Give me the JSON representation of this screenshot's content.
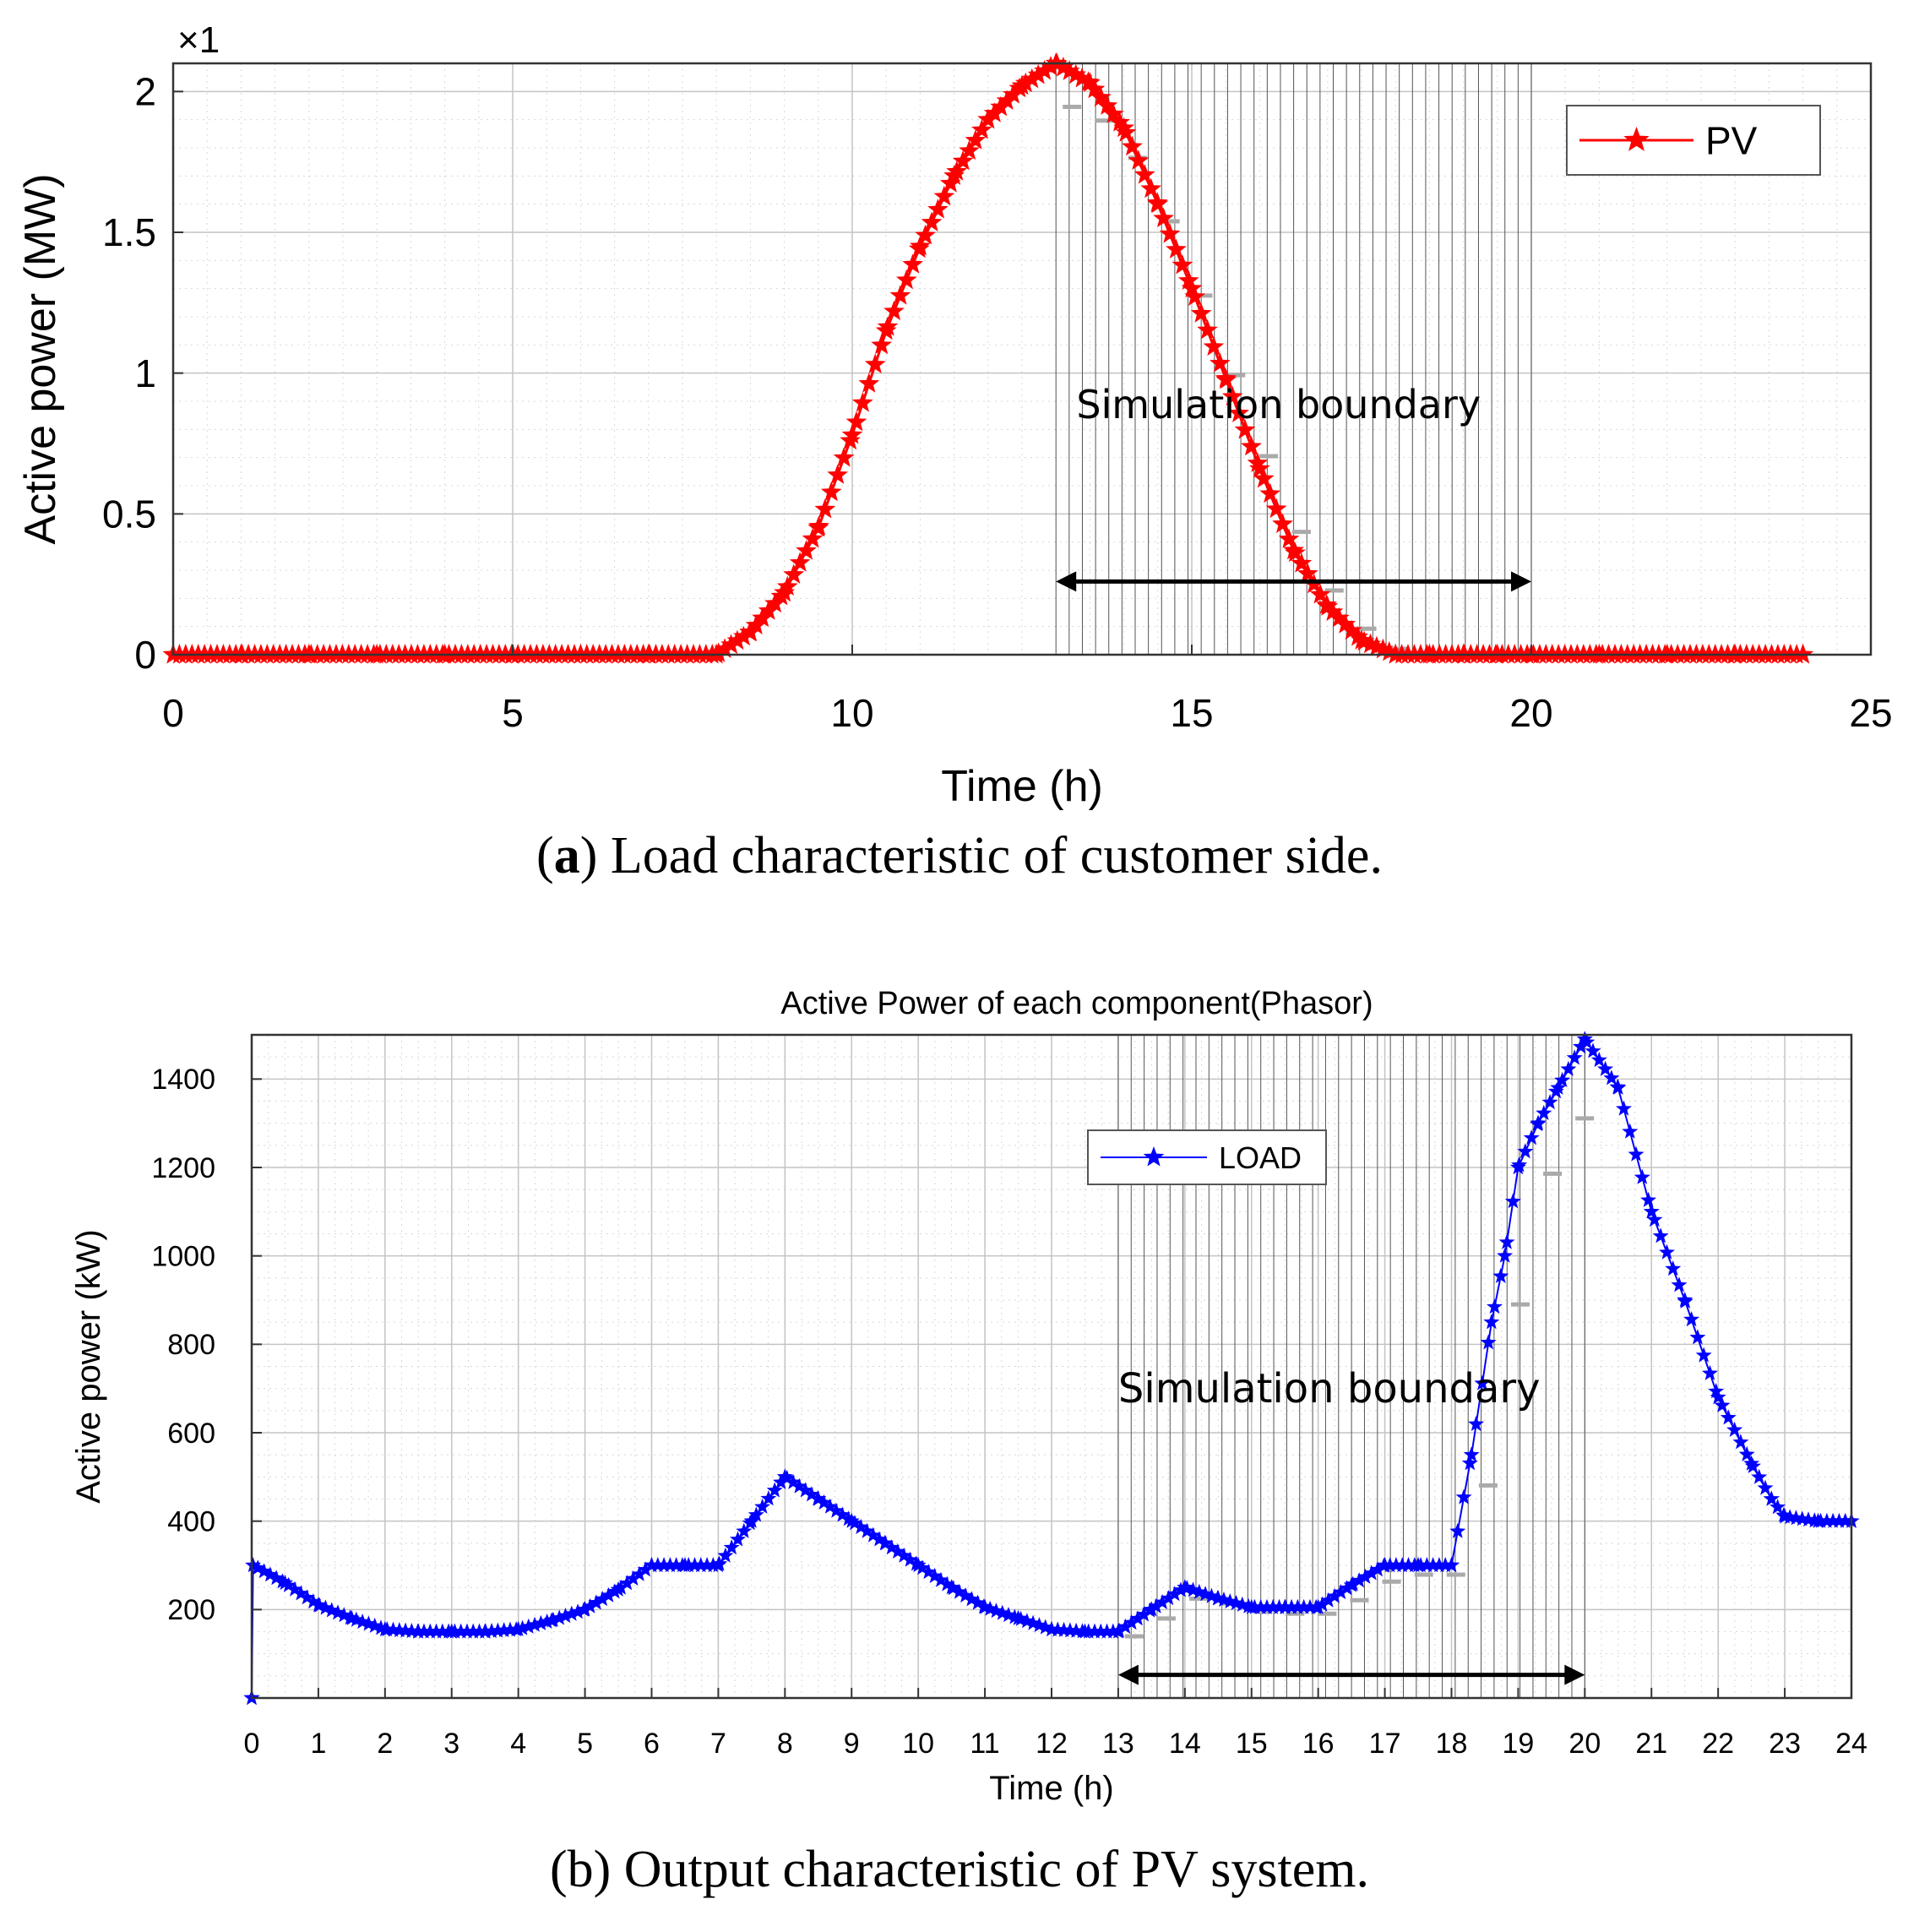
{
  "chart_data": [
    {
      "type": "line",
      "id": "a",
      "title": "",
      "xlabel": "Time (h)",
      "ylabel": "Active power (MW)",
      "y_multiplier": "×1",
      "xlim": [
        0,
        25
      ],
      "ylim": [
        0,
        2.1
      ],
      "xticks": [
        0,
        5,
        10,
        15,
        20,
        25
      ],
      "yticks": [
        0,
        0.5,
        1,
        1.5,
        2
      ],
      "xtick_labels": [
        "0",
        "5",
        "10",
        "15",
        "20",
        "25"
      ],
      "ytick_labels": [
        "0",
        "0.5",
        "1",
        "1.5",
        "2"
      ],
      "grid": true,
      "legend": "top-right",
      "color": "#ff0000",
      "series": [
        {
          "name": "PV",
          "x": [
            0,
            1,
            2,
            3,
            4,
            5,
            6,
            7,
            8.0,
            8.5,
            9.0,
            9.5,
            10.0,
            10.5,
            11.0,
            11.5,
            12.0,
            12.5,
            13.0,
            13.5,
            14.0,
            14.5,
            15.0,
            15.5,
            16.0,
            16.5,
            17.0,
            17.5,
            18.0,
            18.5,
            19.0,
            19.5,
            20.0,
            21,
            22,
            23,
            24
          ],
          "values": [
            0,
            0,
            0,
            0,
            0,
            0,
            0,
            0,
            0.0,
            0.08,
            0.22,
            0.45,
            0.78,
            1.15,
            1.45,
            1.7,
            1.9,
            2.02,
            2.1,
            2.03,
            1.87,
            1.6,
            1.3,
            0.98,
            0.66,
            0.37,
            0.17,
            0.05,
            0.0,
            0.0,
            0.0,
            0.0,
            0.0,
            0,
            0,
            0,
            0
          ]
        }
      ],
      "annotation": "Simulation boundary",
      "boundary_range": [
        13,
        20
      ]
    },
    {
      "type": "line",
      "id": "b",
      "title": "Active Power of each component(Phasor)",
      "xlabel": "Time (h)",
      "ylabel": "Active power (kW)",
      "xlim": [
        0,
        24
      ],
      "ylim": [
        0,
        1500
      ],
      "xticks": [
        0,
        1,
        2,
        3,
        4,
        5,
        6,
        7,
        8,
        9,
        10,
        11,
        12,
        13,
        14,
        15,
        16,
        17,
        18,
        19,
        20,
        21,
        22,
        23,
        24
      ],
      "yticks": [
        200,
        400,
        600,
        800,
        1000,
        1200,
        1400
      ],
      "xtick_labels": [
        "0",
        "1",
        "2",
        "3",
        "4",
        "5",
        "6",
        "7",
        "8",
        "9",
        "10",
        "11",
        "12",
        "13",
        "14",
        "15",
        "16",
        "17",
        "18",
        "19",
        "20",
        "21",
        "22",
        "23",
        "24"
      ],
      "ytick_labels": [
        "200",
        "400",
        "600",
        "800",
        "1000",
        "1200",
        "1400"
      ],
      "grid": true,
      "legend": "top-center",
      "color": "#0000ff",
      "series": [
        {
          "name": "LOAD",
          "x": [
            0,
            0.02,
            0.5,
            1,
            1.5,
            2,
            2.5,
            3,
            3.5,
            4,
            4.5,
            5,
            5.5,
            6,
            6.5,
            7,
            7.5,
            8,
            8.5,
            9,
            9.5,
            10,
            10.5,
            11,
            11.5,
            12,
            12.5,
            13,
            13.5,
            14,
            14.5,
            15,
            15.5,
            16,
            16.5,
            17,
            17.5,
            18,
            18.3,
            18.6,
            18.8,
            19,
            19.3,
            19.6,
            20,
            20.5,
            21,
            21.5,
            22,
            22.5,
            22.8,
            23,
            23.5,
            24
          ],
          "values": [
            0,
            300,
            260,
            210,
            180,
            155,
            150,
            150,
            150,
            155,
            175,
            200,
            245,
            300,
            300,
            300,
            400,
            500,
            450,
            400,
            350,
            300,
            250,
            205,
            180,
            155,
            150,
            150,
            200,
            250,
            225,
            205,
            205,
            205,
            255,
            300,
            300,
            300,
            550,
            850,
            1000,
            1200,
            1300,
            1380,
            1490,
            1380,
            1100,
            900,
            680,
            530,
            450,
            410,
            400,
            400
          ]
        }
      ],
      "annotation": "Simulation boundary",
      "boundary_range": [
        13,
        20
      ]
    }
  ],
  "captions": {
    "a_bold": "a",
    "a_rest": ") Load characteristic of customer side.",
    "a_open": "(",
    "b": "(b) Output characteristic of PV system."
  }
}
